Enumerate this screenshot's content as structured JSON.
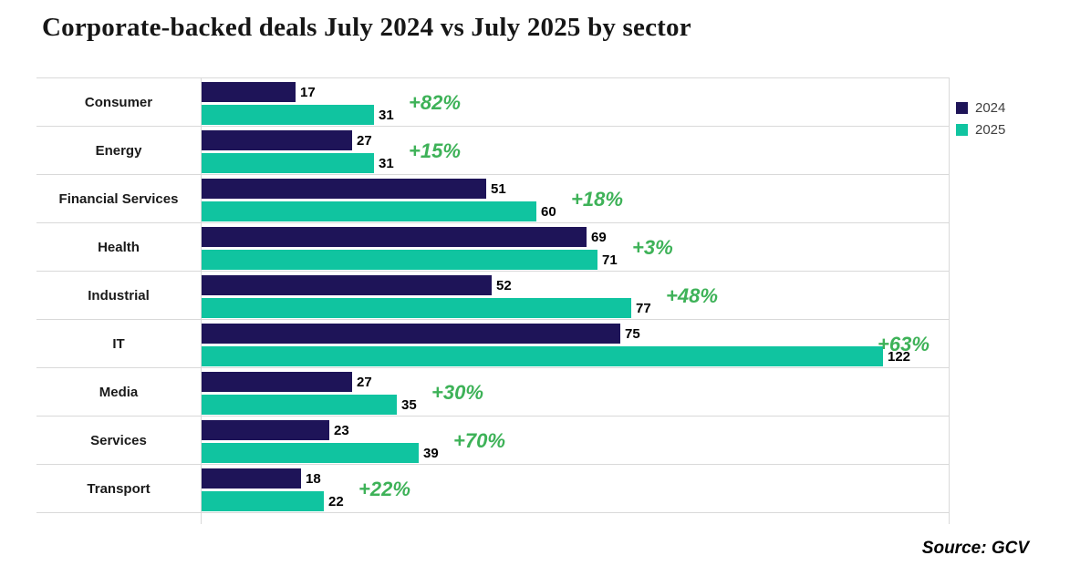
{
  "title": "Corporate-backed deals July 2024 vs July 2025 by sector",
  "source_label": "Source: GCV",
  "legend": {
    "items": [
      {
        "label": "2024",
        "color": "#1e1458"
      },
      {
        "label": "2025",
        "color": "#10c4a0"
      }
    ]
  },
  "colors": {
    "bar_2024": "#1e1458",
    "bar_2025": "#10c4a0",
    "pct_green": "#3eb258",
    "gridline": "#d9d9d9"
  },
  "chart_data": {
    "type": "bar",
    "orientation": "horizontal",
    "title": "Corporate-backed deals July 2024 vs July 2025 by sector",
    "xlabel": "",
    "ylabel": "",
    "xlim": [
      0,
      130
    ],
    "grid": "row-separators",
    "legend_position": "right",
    "categories": [
      "Consumer",
      "Energy",
      "Financial Services",
      "Health",
      "Industrial",
      "IT",
      "Media",
      "Services",
      "Transport"
    ],
    "series": [
      {
        "name": "2024",
        "values": [
          17,
          27,
          51,
          69,
          52,
          75,
          27,
          23,
          18
        ]
      },
      {
        "name": "2025",
        "values": [
          31,
          31,
          60,
          71,
          77,
          122,
          35,
          39,
          22
        ]
      }
    ],
    "change_labels": [
      "+82%",
      "+15%",
      "+18%",
      "+3%",
      "+48%",
      "+63%",
      "+30%",
      "+70%",
      "+22%"
    ]
  }
}
